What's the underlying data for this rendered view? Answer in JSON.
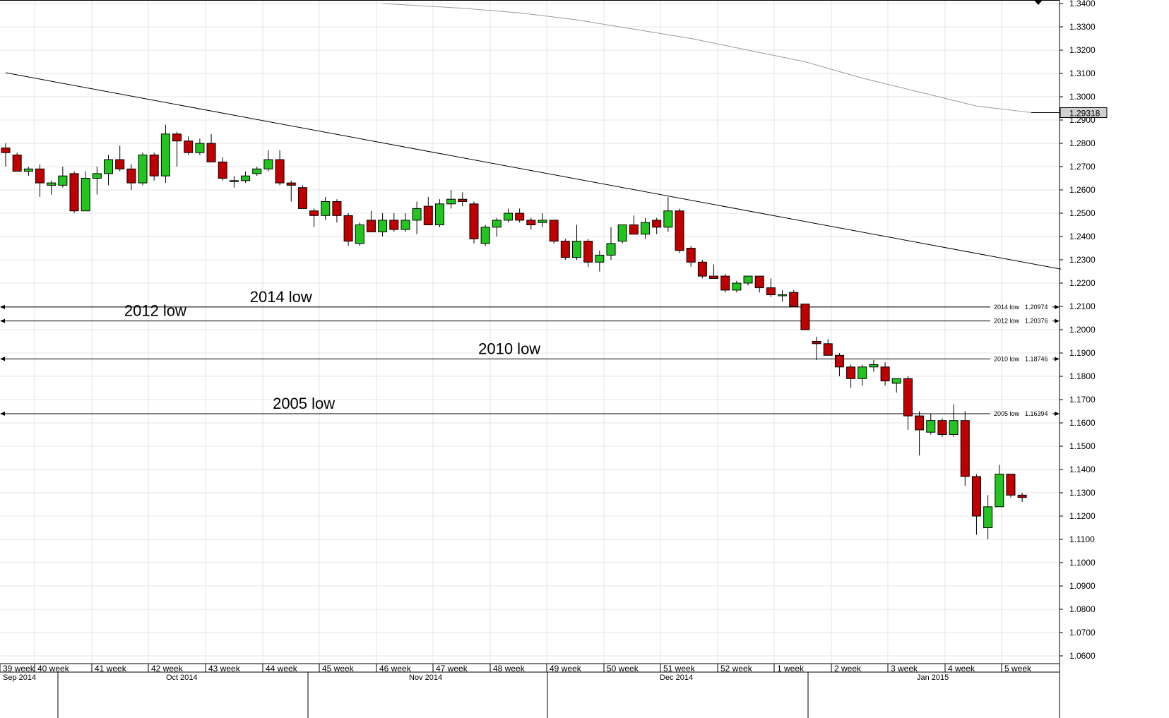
{
  "chart_data": {
    "type": "candlestick",
    "ylim": [
      1.054,
      1.342
    ],
    "y_ticks": [
      "1.0600",
      "1.0700",
      "1.0800",
      "1.0900",
      "1.1000",
      "1.1100",
      "1.1200",
      "1.1300",
      "1.1400",
      "1.1500",
      "1.1600",
      "1.1700",
      "1.1800",
      "1.1900",
      "1.2000",
      "1.2100",
      "1.2200",
      "1.2300",
      "1.2400",
      "1.2500",
      "1.2600",
      "1.2700",
      "1.2800",
      "1.2900",
      "1.3000",
      "1.3100",
      "1.3200",
      "1.3300",
      "1.3400"
    ],
    "colors": {
      "up": "#22c41f",
      "down": "#c00000",
      "outline": "#000000",
      "grid": "#e4e4e4",
      "ma": "#9a9a9a",
      "tag": "#d0d0d0"
    },
    "weeks": [
      "39 week",
      "40 week",
      "41 week",
      "42 week",
      "43 week",
      "44 week",
      "45 week",
      "46 week",
      "47 week",
      "48 week",
      "49 week",
      "50 week",
      "51 week",
      "52 week",
      "1 week",
      "2 week",
      "3 week",
      "4 week",
      "5 week"
    ],
    "months": [
      "Sep 2014",
      "Oct 2014",
      "Nov 2014",
      "Dec 2014",
      "Jan 2015"
    ],
    "candles": [
      {
        "o": 1.278,
        "h": 1.28,
        "l": 1.27,
        "c": 1.276
      },
      {
        "o": 1.275,
        "h": 1.276,
        "l": 1.268,
        "c": 1.268
      },
      {
        "o": 1.268,
        "h": 1.27,
        "l": 1.266,
        "c": 1.269
      },
      {
        "o": 1.269,
        "h": 1.271,
        "l": 1.257,
        "c": 1.263
      },
      {
        "o": 1.262,
        "h": 1.264,
        "l": 1.258,
        "c": 1.263
      },
      {
        "o": 1.262,
        "h": 1.27,
        "l": 1.261,
        "c": 1.266
      },
      {
        "o": 1.267,
        "h": 1.268,
        "l": 1.25,
        "c": 1.251
      },
      {
        "o": 1.251,
        "h": 1.268,
        "l": 1.251,
        "c": 1.265
      },
      {
        "o": 1.265,
        "h": 1.27,
        "l": 1.258,
        "c": 1.267
      },
      {
        "o": 1.267,
        "h": 1.275,
        "l": 1.262,
        "c": 1.273
      },
      {
        "o": 1.273,
        "h": 1.279,
        "l": 1.268,
        "c": 1.269
      },
      {
        "o": 1.269,
        "h": 1.271,
        "l": 1.26,
        "c": 1.263
      },
      {
        "o": 1.263,
        "h": 1.276,
        "l": 1.262,
        "c": 1.275
      },
      {
        "o": 1.275,
        "h": 1.276,
        "l": 1.264,
        "c": 1.266
      },
      {
        "o": 1.266,
        "h": 1.288,
        "l": 1.263,
        "c": 1.284
      },
      {
        "o": 1.284,
        "h": 1.285,
        "l": 1.27,
        "c": 1.281
      },
      {
        "o": 1.281,
        "h": 1.283,
        "l": 1.275,
        "c": 1.276
      },
      {
        "o": 1.276,
        "h": 1.282,
        "l": 1.275,
        "c": 1.28
      },
      {
        "o": 1.28,
        "h": 1.284,
        "l": 1.272,
        "c": 1.272
      },
      {
        "o": 1.272,
        "h": 1.274,
        "l": 1.264,
        "c": 1.265
      },
      {
        "o": 1.264,
        "h": 1.266,
        "l": 1.261,
        "c": 1.264
      },
      {
        "o": 1.264,
        "h": 1.268,
        "l": 1.263,
        "c": 1.266
      },
      {
        "o": 1.267,
        "h": 1.27,
        "l": 1.266,
        "c": 1.269
      },
      {
        "o": 1.269,
        "h": 1.277,
        "l": 1.268,
        "c": 1.273
      },
      {
        "o": 1.273,
        "h": 1.277,
        "l": 1.262,
        "c": 1.263
      },
      {
        "o": 1.263,
        "h": 1.264,
        "l": 1.255,
        "c": 1.262
      },
      {
        "o": 1.261,
        "h": 1.262,
        "l": 1.252,
        "c": 1.252
      },
      {
        "o": 1.251,
        "h": 1.252,
        "l": 1.244,
        "c": 1.249
      },
      {
        "o": 1.249,
        "h": 1.257,
        "l": 1.247,
        "c": 1.255
      },
      {
        "o": 1.255,
        "h": 1.256,
        "l": 1.246,
        "c": 1.249
      },
      {
        "o": 1.249,
        "h": 1.25,
        "l": 1.236,
        "c": 1.238
      },
      {
        "o": 1.237,
        "h": 1.246,
        "l": 1.236,
        "c": 1.245
      },
      {
        "o": 1.247,
        "h": 1.251,
        "l": 1.242,
        "c": 1.242
      },
      {
        "o": 1.242,
        "h": 1.25,
        "l": 1.24,
        "c": 1.247
      },
      {
        "o": 1.247,
        "h": 1.25,
        "l": 1.242,
        "c": 1.243
      },
      {
        "o": 1.243,
        "h": 1.25,
        "l": 1.242,
        "c": 1.247
      },
      {
        "o": 1.247,
        "h": 1.255,
        "l": 1.241,
        "c": 1.252
      },
      {
        "o": 1.253,
        "h": 1.257,
        "l": 1.245,
        "c": 1.245
      },
      {
        "o": 1.245,
        "h": 1.256,
        "l": 1.244,
        "c": 1.254
      },
      {
        "o": 1.254,
        "h": 1.26,
        "l": 1.252,
        "c": 1.256
      },
      {
        "o": 1.256,
        "h": 1.259,
        "l": 1.253,
        "c": 1.255
      },
      {
        "o": 1.254,
        "h": 1.255,
        "l": 1.237,
        "c": 1.239
      },
      {
        "o": 1.237,
        "h": 1.245,
        "l": 1.236,
        "c": 1.244
      },
      {
        "o": 1.244,
        "h": 1.248,
        "l": 1.24,
        "c": 1.247
      },
      {
        "o": 1.247,
        "h": 1.252,
        "l": 1.246,
        "c": 1.25
      },
      {
        "o": 1.25,
        "h": 1.252,
        "l": 1.246,
        "c": 1.247
      },
      {
        "o": 1.247,
        "h": 1.248,
        "l": 1.243,
        "c": 1.245
      },
      {
        "o": 1.246,
        "h": 1.25,
        "l": 1.244,
        "c": 1.247
      },
      {
        "o": 1.247,
        "h": 1.247,
        "l": 1.237,
        "c": 1.238
      },
      {
        "o": 1.238,
        "h": 1.239,
        "l": 1.23,
        "c": 1.231
      },
      {
        "o": 1.231,
        "h": 1.245,
        "l": 1.23,
        "c": 1.238
      },
      {
        "o": 1.238,
        "h": 1.239,
        "l": 1.227,
        "c": 1.229
      },
      {
        "o": 1.229,
        "h": 1.234,
        "l": 1.225,
        "c": 1.232
      },
      {
        "o": 1.232,
        "h": 1.244,
        "l": 1.23,
        "c": 1.237
      },
      {
        "o": 1.238,
        "h": 1.245,
        "l": 1.237,
        "c": 1.245
      },
      {
        "o": 1.245,
        "h": 1.249,
        "l": 1.241,
        "c": 1.241
      },
      {
        "o": 1.241,
        "h": 1.248,
        "l": 1.239,
        "c": 1.246
      },
      {
        "o": 1.247,
        "h": 1.248,
        "l": 1.241,
        "c": 1.244
      },
      {
        "o": 1.244,
        "h": 1.257,
        "l": 1.242,
        "c": 1.251
      },
      {
        "o": 1.251,
        "h": 1.252,
        "l": 1.233,
        "c": 1.234
      },
      {
        "o": 1.235,
        "h": 1.236,
        "l": 1.227,
        "c": 1.229
      },
      {
        "o": 1.229,
        "h": 1.23,
        "l": 1.222,
        "c": 1.223
      },
      {
        "o": 1.223,
        "h": 1.228,
        "l": 1.222,
        "c": 1.222
      },
      {
        "o": 1.223,
        "h": 1.224,
        "l": 1.216,
        "c": 1.217
      },
      {
        "o": 1.217,
        "h": 1.221,
        "l": 1.216,
        "c": 1.22
      },
      {
        "o": 1.22,
        "h": 1.223,
        "l": 1.219,
        "c": 1.223
      },
      {
        "o": 1.223,
        "h": 1.223,
        "l": 1.216,
        "c": 1.218
      },
      {
        "o": 1.218,
        "h": 1.222,
        "l": 1.214,
        "c": 1.215
      },
      {
        "o": 1.215,
        "h": 1.217,
        "l": 1.212,
        "c": 1.215
      },
      {
        "o": 1.216,
        "h": 1.217,
        "l": 1.21,
        "c": 1.21
      },
      {
        "o": 1.211,
        "h": 1.211,
        "l": 1.2,
        "c": 1.2
      },
      {
        "o": 1.195,
        "h": 1.197,
        "l": 1.187,
        "c": 1.194
      },
      {
        "o": 1.194,
        "h": 1.196,
        "l": 1.189,
        "c": 1.189
      },
      {
        "o": 1.189,
        "h": 1.19,
        "l": 1.18,
        "c": 1.184
      },
      {
        "o": 1.184,
        "h": 1.185,
        "l": 1.175,
        "c": 1.179
      },
      {
        "o": 1.179,
        "h": 1.185,
        "l": 1.176,
        "c": 1.184
      },
      {
        "o": 1.184,
        "h": 1.187,
        "l": 1.182,
        "c": 1.185
      },
      {
        "o": 1.184,
        "h": 1.186,
        "l": 1.176,
        "c": 1.178
      },
      {
        "o": 1.177,
        "h": 1.179,
        "l": 1.173,
        "c": 1.179
      },
      {
        "o": 1.179,
        "h": 1.18,
        "l": 1.157,
        "c": 1.163
      },
      {
        "o": 1.163,
        "h": 1.165,
        "l": 1.146,
        "c": 1.157
      },
      {
        "o": 1.156,
        "h": 1.164,
        "l": 1.155,
        "c": 1.161
      },
      {
        "o": 1.161,
        "h": 1.162,
        "l": 1.154,
        "c": 1.155
      },
      {
        "o": 1.155,
        "h": 1.168,
        "l": 1.154,
        "c": 1.161
      },
      {
        "o": 1.161,
        "h": 1.165,
        "l": 1.133,
        "c": 1.137
      },
      {
        "o": 1.137,
        "h": 1.138,
        "l": 1.112,
        "c": 1.12
      },
      {
        "o": 1.115,
        "h": 1.129,
        "l": 1.11,
        "c": 1.124
      },
      {
        "o": 1.124,
        "h": 1.142,
        "l": 1.124,
        "c": 1.138
      },
      {
        "o": 1.138,
        "h": 1.138,
        "l": 1.128,
        "c": 1.129
      },
      {
        "o": 1.129,
        "h": 1.13,
        "l": 1.126,
        "c": 1.128
      }
    ],
    "trendline": {
      "from": [
        0,
        1.3103
      ],
      "to": [
        92.4,
        1.226
      ]
    },
    "moving_average": [
      [
        33,
        1.34
      ],
      [
        40,
        1.338
      ],
      [
        45,
        1.336
      ],
      [
        50,
        1.333
      ],
      [
        55,
        1.329
      ],
      [
        60,
        1.325
      ],
      [
        65,
        1.32
      ],
      [
        70,
        1.315
      ],
      [
        75,
        1.308
      ],
      [
        80,
        1.302
      ],
      [
        85,
        1.296
      ],
      [
        89.8,
        1.2932
      ]
    ],
    "horizontal_levels": [
      {
        "name": "2014 low",
        "label": "2014 low",
        "value_text": "1.20974",
        "value": 1.20974,
        "big_label": "2014 low",
        "label_at": 22
      },
      {
        "name": "2012 low",
        "label": "2012 low",
        "value_text": "1.20376",
        "value": 1.20376,
        "big_label": "2012 low",
        "label_at": 11
      },
      {
        "name": "2010 low",
        "label": "2010 low",
        "value_text": "1.18746",
        "value": 1.18746,
        "big_label": "2010 low",
        "label_at": 42
      },
      {
        "name": "2005 low",
        "label": "2005 low",
        "value_text": "1.16394",
        "value": 1.16394,
        "big_label": "2005 low",
        "label_at": 24
      }
    ],
    "current_price": "1.29318",
    "current_price_value": 1.29318
  }
}
